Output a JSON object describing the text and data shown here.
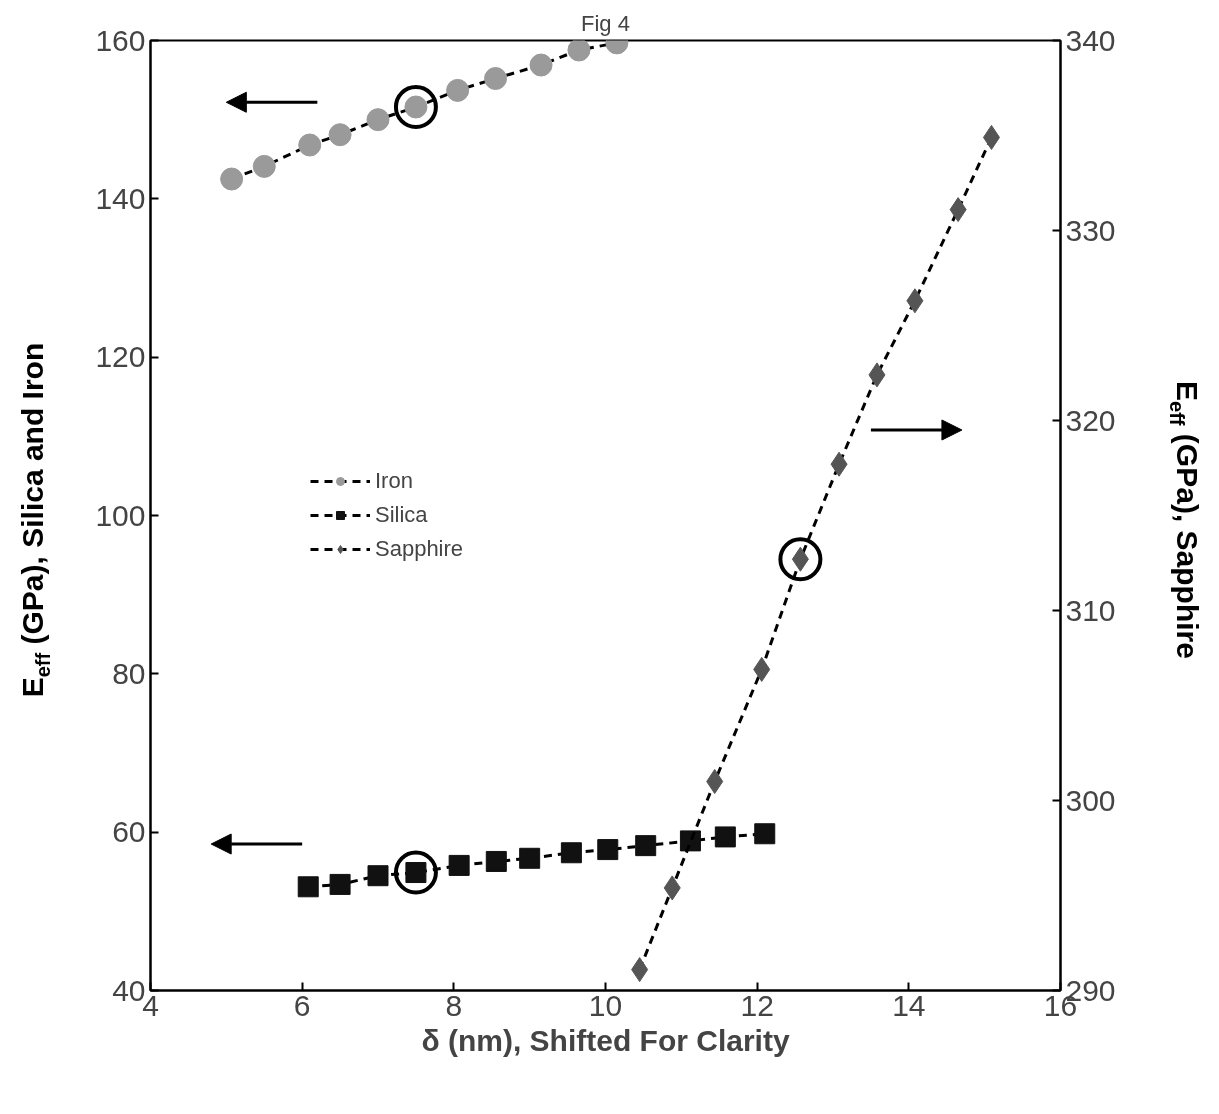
{
  "chart_data": {
    "type": "line",
    "title": "Fig 4",
    "xlabel": "δ (nm), Shifted For Clarity",
    "ylabel": "E$_{eff}$ (GPa), Silica and Iron",
    "y2label": "E$_{eff}$ (GPa), Sapphire",
    "xlim": [
      4,
      16
    ],
    "xticks": [
      4,
      6,
      8,
      10,
      12,
      14,
      16
    ],
    "ylim": [
      40,
      160
    ],
    "yticks": [
      40,
      60,
      80,
      100,
      120,
      140,
      160
    ],
    "y2lim": [
      290,
      340
    ],
    "y2ticks": [
      290,
      300,
      310,
      320,
      330,
      340
    ],
    "grid": false,
    "legend": "left",
    "line_style": "dashed",
    "series": [
      {
        "name": "Iron",
        "color": "#9a9a9a",
        "marker": "circle",
        "x": [
          5.07,
          5.5,
          6.1,
          6.5,
          7.0,
          7.5,
          8.05,
          8.55,
          9.15,
          9.65,
          10.15
        ],
        "values": [
          142.5,
          144.1,
          146.8,
          148.1,
          150.0,
          151.6,
          153.7,
          155.2,
          156.9,
          158.8,
          159.7
        ]
      },
      {
        "name": "Silica",
        "color": "#111111",
        "marker": "square",
        "x": [
          6.08,
          6.5,
          7.0,
          7.5,
          8.07,
          8.56,
          9.0,
          9.55,
          10.03,
          10.53,
          11.12,
          11.58,
          12.1
        ],
        "values": [
          53.1,
          53.4,
          54.5,
          54.9,
          55.8,
          56.3,
          56.7,
          57.4,
          57.8,
          58.3,
          58.9,
          59.4,
          59.8
        ]
      },
      {
        "name": "Sapphire",
        "color": "#555555",
        "marker": "diamond",
        "axis": "y2",
        "x": [
          10.45,
          10.88,
          11.44,
          12.06,
          12.57,
          13.08,
          13.58,
          14.08,
          14.65,
          15.09
        ],
        "values": [
          291.1,
          295.4,
          301.0,
          306.9,
          312.7,
          317.7,
          322.4,
          326.3,
          331.1,
          334.9
        ]
      }
    ]
  }
}
